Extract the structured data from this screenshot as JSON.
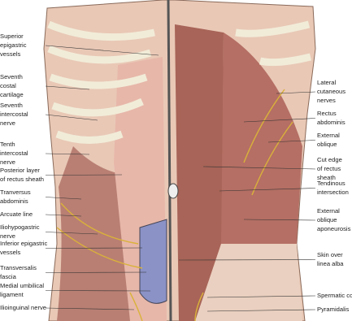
{
  "left_labels": [
    {
      "lines": [
        "Superior",
        "epigastric",
        "vessels"
      ]
    },
    {
      "lines": [
        "Seventh",
        "costal",
        "cartilage"
      ]
    },
    {
      "lines": [
        "Seventh",
        "intercostal",
        "nerve"
      ]
    },
    {
      "lines": [
        "Tenth",
        "intercostal",
        "nerve"
      ]
    },
    {
      "lines": [
        "Posterior layer",
        "of rectus sheath"
      ]
    },
    {
      "lines": [
        "Tranversus",
        "abdominis"
      ]
    },
    {
      "lines": [
        "Arcuate line"
      ]
    },
    {
      "lines": [
        "Iliohypogastric",
        "nerve"
      ]
    },
    {
      "lines": [
        "Inferior epigastric",
        "vessels"
      ]
    },
    {
      "lines": [
        "Transversalis",
        "fascia"
      ]
    },
    {
      "lines": [
        "Medial umbilical",
        "ligament"
      ]
    },
    {
      "lines": [
        "Ilioinguinal nerve"
      ]
    }
  ],
  "right_labels": [
    {
      "lines": [
        "Lateral",
        "cutaneous",
        "nerves"
      ]
    },
    {
      "lines": [
        "Rectus",
        "abdominis"
      ]
    },
    {
      "lines": [
        "External",
        "oblique"
      ]
    },
    {
      "lines": [
        "Cut edge",
        "of rectus",
        "sheath"
      ]
    },
    {
      "lines": [
        "Tendinous",
        "intersection"
      ]
    },
    {
      "lines": [
        "External",
        "oblique",
        "aponeurosis"
      ]
    },
    {
      "lines": [
        "Skin over",
        "linea alba"
      ]
    },
    {
      "lines": [
        "Spermatic corc"
      ]
    },
    {
      "lines": [
        "Pyramidalis"
      ]
    }
  ]
}
